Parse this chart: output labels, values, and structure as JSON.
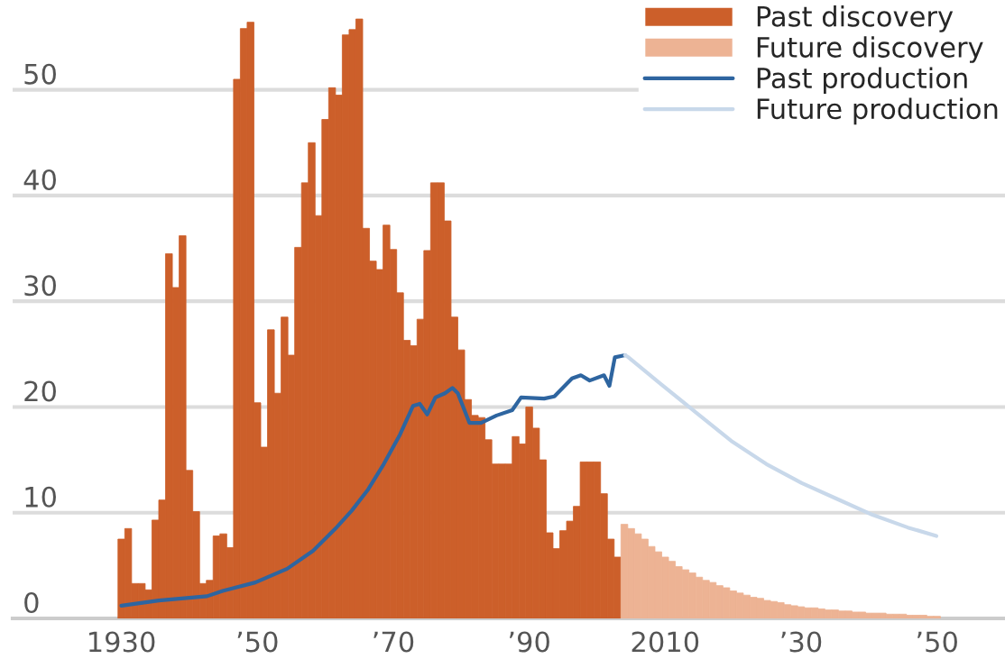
{
  "chart_data": {
    "type": "bar",
    "xlim": [
      1914,
      2060
    ],
    "ylim": [
      0,
      58.5
    ],
    "xticks": [
      1930,
      {
        "value": 1950,
        "label": "’50"
      },
      {
        "value": 1970,
        "label": "’70"
      },
      {
        "value": 1990,
        "label": "’90"
      },
      2010,
      {
        "value": 2030,
        "label": "’30"
      },
      {
        "value": 2050,
        "label": "’50"
      }
    ],
    "yticks": [
      0,
      10,
      20,
      30,
      40,
      50
    ],
    "grid": "y",
    "legend": "top right",
    "series": [
      {
        "name": "Past discovery",
        "color": "#cc5f2a",
        "x": [
          1930,
          1931,
          1932,
          1933,
          1934,
          1935,
          1936,
          1937,
          1938,
          1939,
          1940,
          1941,
          1942,
          1943,
          1944,
          1945,
          1946,
          1947,
          1948,
          1949,
          1950,
          1951,
          1952,
          1953,
          1954,
          1955,
          1956,
          1957,
          1958,
          1959,
          1960,
          1961,
          1962,
          1963,
          1964,
          1965,
          1966,
          1967,
          1968,
          1969,
          1970,
          1971,
          1972,
          1973,
          1974,
          1975,
          1976,
          1977,
          1978,
          1979,
          1980,
          1981,
          1982,
          1983,
          1984,
          1985,
          1986,
          1987,
          1988,
          1989,
          1990,
          1991,
          1992,
          1993,
          1994,
          1995,
          1996,
          1997,
          1998,
          1999,
          2000,
          2001,
          2002,
          2003
        ],
        "values": [
          7.5,
          8.5,
          3.3,
          3.3,
          2.7,
          9.3,
          11.2,
          34.5,
          31.3,
          36.2,
          14.0,
          10.1,
          3.3,
          3.6,
          7.8,
          8.0,
          6.7,
          51.0,
          55.8,
          56.4,
          20.4,
          16.2,
          27.3,
          21.3,
          28.5,
          24.9,
          35.1,
          41.2,
          45.0,
          38.1,
          47.2,
          50.2,
          49.5,
          55.2,
          55.7,
          56.7,
          36.9,
          33.8,
          33.0,
          37.2,
          34.9,
          30.8,
          26.3,
          25.8,
          28.3,
          34.8,
          41.2,
          41.2,
          37.6,
          28.5,
          25.4,
          20.7,
          19.2,
          19.0,
          16.9,
          14.6,
          14.6,
          14.6,
          17.2,
          16.5,
          20.0,
          18.0,
          15.0,
          8.1,
          6.6,
          8.3,
          9.2,
          10.6,
          14.8,
          14.8,
          14.8,
          11.8,
          7.5,
          5.8
        ]
      },
      {
        "name": "Future discovery",
        "color": "#edb394",
        "x": [
          2004,
          2005,
          2006,
          2007,
          2008,
          2009,
          2010,
          2011,
          2012,
          2013,
          2014,
          2015,
          2016,
          2017,
          2018,
          2019,
          2020,
          2021,
          2022,
          2023,
          2024,
          2025,
          2026,
          2027,
          2028,
          2029,
          2030,
          2031,
          2032,
          2033,
          2034,
          2035,
          2036,
          2037,
          2038,
          2039,
          2040,
          2041,
          2042,
          2043,
          2044,
          2045,
          2046,
          2047,
          2048,
          2049,
          2050
        ],
        "values": [
          8.9,
          8.5,
          8.0,
          7.5,
          6.8,
          6.3,
          5.8,
          5.4,
          4.9,
          4.6,
          4.3,
          3.9,
          3.6,
          3.4,
          3.1,
          2.9,
          2.6,
          2.4,
          2.2,
          2.0,
          1.9,
          1.7,
          1.6,
          1.5,
          1.3,
          1.2,
          1.1,
          1.0,
          1.0,
          0.9,
          0.8,
          0.8,
          0.7,
          0.7,
          0.6,
          0.6,
          0.5,
          0.5,
          0.5,
          0.4,
          0.4,
          0.4,
          0.3,
          0.3,
          0.3,
          0.2,
          0.2
        ]
      },
      {
        "name": "Past production",
        "type": "line",
        "color": "#2e65a0",
        "x": [
          1930,
          1935.5,
          1942.6,
          1944.9,
          1949.7,
          1954.4,
          1958.2,
          1961.5,
          1963.9,
          1966.3,
          1968.6,
          1971,
          1972.9,
          1973.9,
          1975,
          1976.2,
          1977.6,
          1978.7,
          1979.5,
          1981.2,
          1982.9,
          1985.2,
          1987.5,
          1988.8,
          1992.2,
          1993.7,
          1996.3,
          1997.6,
          1998.9,
          2001,
          2001.8,
          2002.6,
          2004.1
        ],
        "values": [
          1.2,
          1.7,
          2.1,
          2.6,
          3.4,
          4.7,
          6.4,
          8.5,
          10.2,
          12.2,
          14.6,
          17.4,
          20.1,
          20.3,
          19.3,
          20.9,
          21.3,
          21.8,
          21.3,
          18.5,
          18.5,
          19.2,
          19.7,
          20.9,
          20.8,
          21.0,
          22.7,
          23.0,
          22.5,
          23.0,
          22.0,
          24.7,
          24.9
        ]
      },
      {
        "name": "Future production",
        "type": "line",
        "color": "#c8d8ea",
        "x": [
          2004.1,
          2004.6,
          2009.3,
          2014.5,
          2019.7,
          2024.9,
          2030.1,
          2035.3,
          2040.5,
          2045.7,
          2049.9
        ],
        "values": [
          24.9,
          24.7,
          22.2,
          19.5,
          16.8,
          14.6,
          12.8,
          11.3,
          9.8,
          8.6,
          7.8
        ]
      }
    ]
  }
}
